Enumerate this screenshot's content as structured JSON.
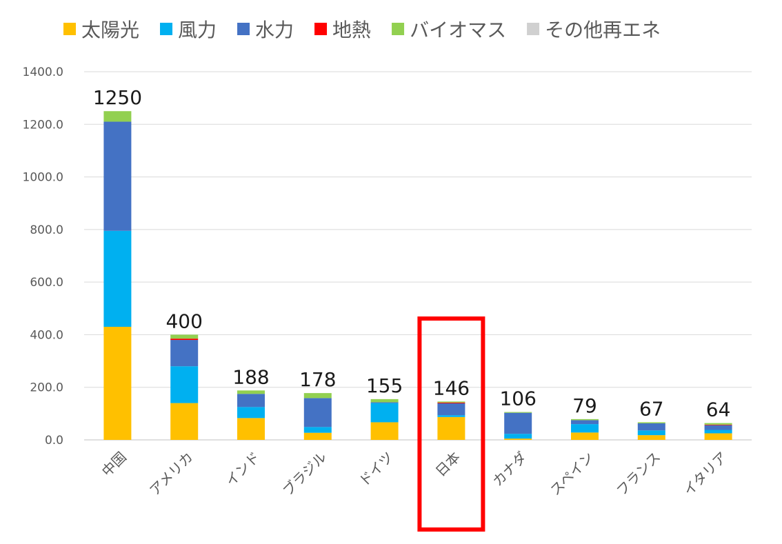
{
  "chart_data": {
    "type": "bar",
    "stacked": true,
    "categories": [
      "中国",
      "アメリカ",
      "インド",
      "ブラジル",
      "ドイツ",
      "日本",
      "カナダ",
      "スペイン",
      "フランス",
      "イタリア"
    ],
    "series": [
      {
        "name": "太陽光",
        "color": "#ffc000",
        "values": [
          430,
          140,
          83,
          27,
          67,
          87,
          5,
          28,
          18,
          25
        ]
      },
      {
        "name": "風力",
        "color": "#00b0f0",
        "values": [
          365,
          140,
          42,
          22,
          73,
          7,
          18,
          32,
          18,
          13
        ]
      },
      {
        "name": "水力",
        "color": "#4472c4",
        "values": [
          415,
          100,
          50,
          110,
          3,
          45,
          80,
          15,
          27,
          18
        ]
      },
      {
        "name": "地熱",
        "color": "#ff0000",
        "values": [
          0,
          5,
          0,
          0,
          0,
          3,
          0,
          0,
          0,
          2
        ]
      },
      {
        "name": "バイオマス",
        "color": "#92d050",
        "values": [
          40,
          15,
          13,
          19,
          12,
          4,
          3,
          4,
          4,
          6
        ]
      },
      {
        "name": "その他再エネ",
        "color": "#d0d0d0",
        "values": [
          0,
          0,
          0,
          0,
          0,
          0,
          0,
          0,
          0,
          0
        ]
      }
    ],
    "totals": [
      "1250",
      "400",
      "188",
      "178",
      "155",
      "146",
      "106",
      "79",
      "67",
      "64"
    ],
    "yticks": [
      "0.0",
      "200.0",
      "400.0",
      "600.0",
      "800.0",
      "1000.0",
      "1200.0",
      "1400.0"
    ],
    "ylim": [
      0,
      1400
    ],
    "grid": true,
    "legend_position": "top",
    "highlight": {
      "category": "日本",
      "color": "#ff0000"
    }
  }
}
